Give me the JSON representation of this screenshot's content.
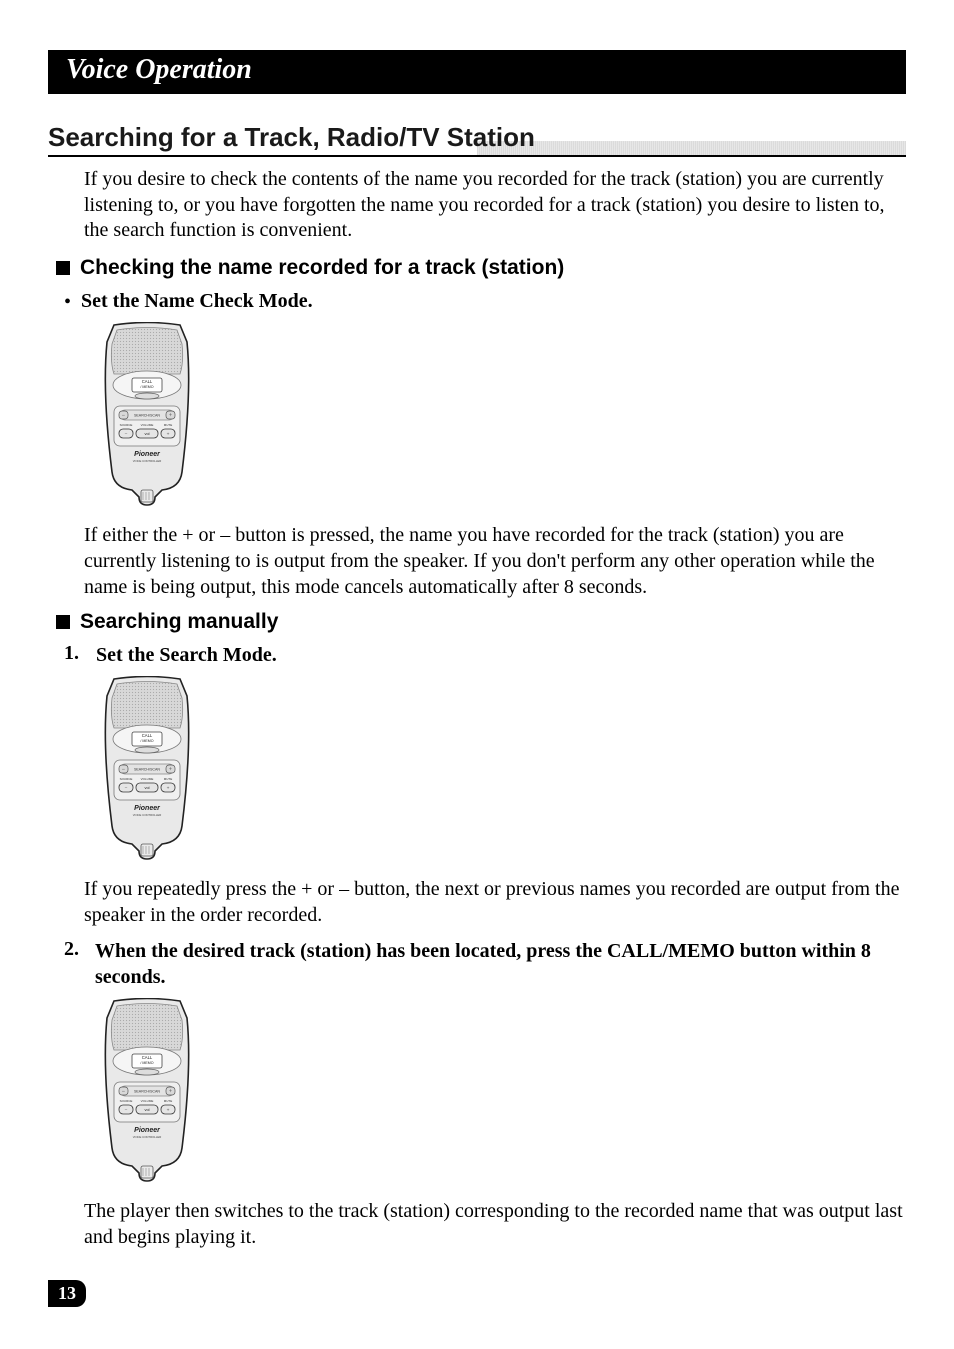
{
  "title_bar": "Voice Operation",
  "section_title": "Searching for a Track, Radio/TV Station",
  "intro": "If you desire to check the contents of the name you recorded for the track (station) you are currently listening to, or you have forgotten the name you recorded for a track (station) you desire to listen to, the search function is convenient.",
  "sub1": "Checking the name recorded for a track (station)",
  "step1_bullet": "Set the Name Check Mode.",
  "para1": "If either the + or – button is pressed, the name you have recorded for the track (station) you are currently listening to is output from the speaker. If you don't perform any other operation while the name is being output, this mode cancels automatically after 8 seconds.",
  "sub2": "Searching manually",
  "step2_num": "1.",
  "step2_text": "Set the Search Mode.",
  "para2": "If you repeatedly press the + or – button, the next or previous names you recorded are output from the speaker in the order recorded.",
  "step3_num": "2.",
  "step3_text": "When the desired track (station) has been located, press the CALL/MEMO button within 8 seconds.",
  "para3": "The player then switches to the track (station) corresponding to the recorded name that was output last and begins playing it.",
  "page_number": "13",
  "remote": {
    "outline_stroke": "#222222",
    "body_fill": "#e9e9e9",
    "grid_fill": "#d8d8d8",
    "screen_fill": "#f5f5f5",
    "brand": "Pioneer",
    "brand_sub": "VOICE CONTROLLER",
    "call_label": "CALL",
    "memo_label": "/ MEMO",
    "search_scan": "SEARCH/SCAN",
    "labels_row": [
      "SOURCE",
      "VOLUME",
      "MUTE"
    ],
    "btn_minus": "−",
    "btn_vol": "vol",
    "btn_plus": "+"
  }
}
